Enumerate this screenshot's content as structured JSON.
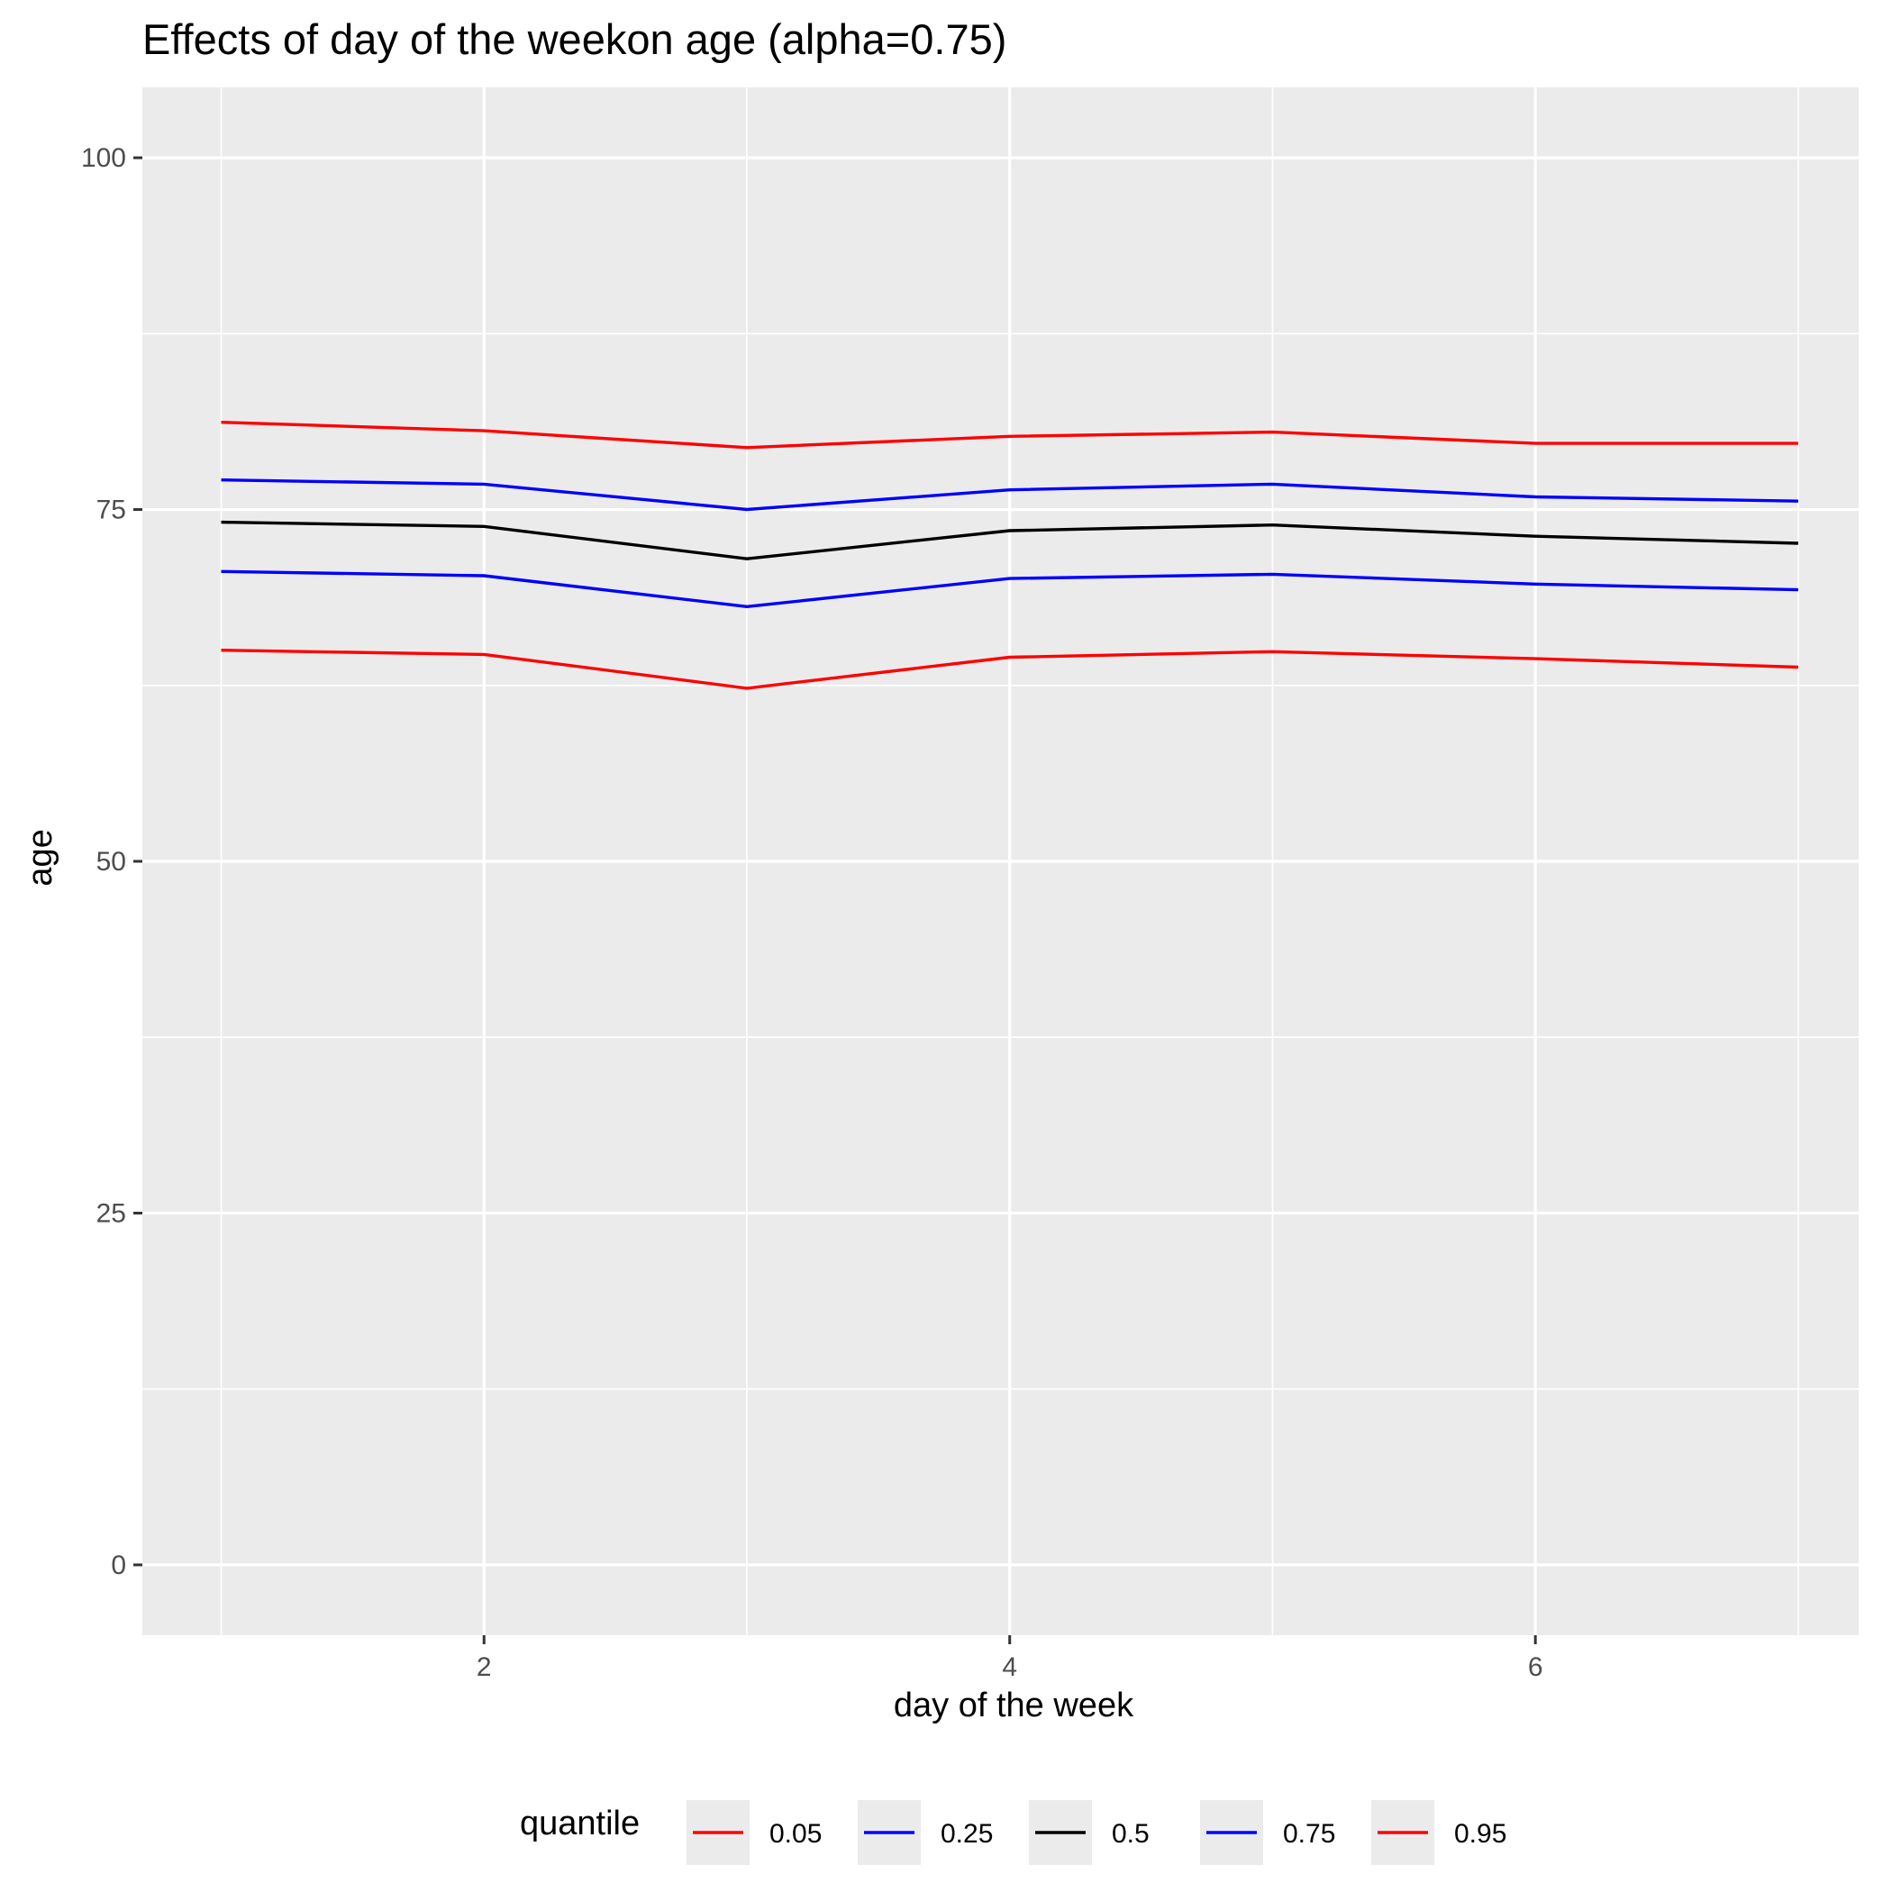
{
  "chart_data": {
    "type": "line",
    "title": "Effects of day of the weekon age (alpha=0.75)",
    "xlabel": "day of the week",
    "ylabel": "age",
    "x": [
      1,
      2,
      3,
      4,
      5,
      6,
      7
    ],
    "xlim": [
      0.7,
      7.23
    ],
    "ylim": [
      -5,
      105
    ],
    "x_ticks": [
      2,
      4,
      6
    ],
    "y_ticks": [
      0,
      25,
      50,
      75,
      100
    ],
    "x_tick_labels": [
      "2",
      "4",
      "6"
    ],
    "y_tick_labels": [
      "0",
      "25",
      "50",
      "75",
      "100"
    ],
    "grid": true,
    "background": "#ebebeb",
    "grid_color": "#ffffff",
    "legend_title": "quantile",
    "legend_position": "bottom",
    "series": [
      {
        "name": "0.05",
        "color": "#ff0000",
        "values": [
          65.0,
          64.7,
          62.3,
          64.5,
          64.9,
          64.4,
          63.8
        ]
      },
      {
        "name": "0.25",
        "color": "#0000ff",
        "values": [
          70.6,
          70.3,
          68.1,
          70.1,
          70.4,
          69.7,
          69.3
        ]
      },
      {
        "name": "0.5",
        "color": "#000000",
        "values": [
          74.1,
          73.8,
          71.5,
          73.5,
          73.9,
          73.1,
          72.6
        ]
      },
      {
        "name": "0.75",
        "color": "#0000ff",
        "values": [
          77.1,
          76.8,
          75.0,
          76.4,
          76.8,
          75.9,
          75.6
        ]
      },
      {
        "name": "0.95",
        "color": "#ff0000",
        "values": [
          81.2,
          80.6,
          79.4,
          80.2,
          80.5,
          79.7,
          79.7
        ]
      }
    ]
  }
}
